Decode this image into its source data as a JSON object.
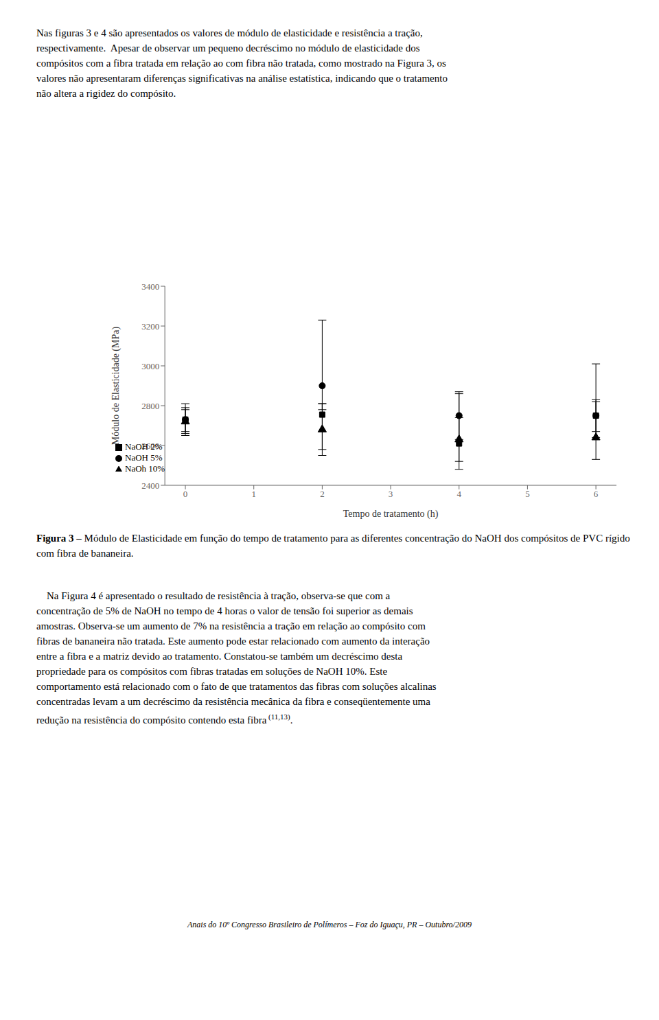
{
  "chart_data": {
    "type": "scatter",
    "title": "Figura 3 –",
    "subtitle": "Módulo de Elasticidade em função do tempo de tratamento para as diferentes concentração do NaOH dos compósitos de PVC rígido com fibra de bananeira.",
    "x_label": "Tempo de tratamento (h)",
    "y_label": "Módulo de Elasticidade (MPa)",
    "xlim": [
      -0.3,
      6.3
    ],
    "xticks": [
      0,
      1,
      2,
      3,
      4,
      5,
      6
    ],
    "ylim": [
      2400,
      3400
    ],
    "yticks": [
      2400,
      2600,
      2800,
      3000,
      3200,
      3400
    ],
    "grid": false,
    "legend": "lower left",
    "series": [
      {
        "name": "NaOH 2%",
        "color": "black",
        "marker": "square",
        "x": [
          0,
          2,
          4,
          6
        ],
        "values": [
          2730,
          2755,
          2610,
          2750
        ],
        "yerr_low": [
          80,
          175,
          130,
          80
        ],
        "yerr_high": [
          80,
          55,
          260,
          80
        ]
      },
      {
        "name": "NaOH 5%",
        "color": "black",
        "marker": "circle",
        "x": [
          0,
          2,
          4,
          6
        ],
        "values": [
          2730,
          2900,
          2750,
          2750
        ],
        "yerr_low": [
          60,
          120,
          120,
          110
        ],
        "yerr_high": [
          60,
          330,
          110,
          260
        ]
      },
      {
        "name": "NaOh 10%",
        "color": "black",
        "marker": "triangle",
        "x": [
          0,
          2,
          4,
          6
        ],
        "values": [
          2720,
          2680,
          2630,
          2640
        ],
        "yerr_low": [
          60,
          130,
          110,
          110
        ],
        "yerr_high": [
          60,
          130,
          110,
          180
        ]
      }
    ],
    "annotations": [
      "Nas figuras 3 e 4 são apresentados os valores de módulo de elasticidade e resistência a tração,",
      "respectivamente.  Apesar de observar um pequeno decréscimo no módulo de elasticidade dos",
      "compósitos com a fibra tratada em relação ao com fibra não tratada, como mostrado na Figura 3, os",
      "valores não apresentaram diferenças significativas na análise estatística, indicando que o tratamento",
      "não altera a rigidez do compósito.",
      "    Na Figura 4 é apresentado o resultado de resistência à tração, observa-se que com a",
      "concentração de 5% de NaOH no tempo de 4 horas o valor de tensão foi superior as demais",
      "amostras. Observa-se um aumento de 7% na resistência a tração em relação ao compósito com",
      "fibras de bananeira não tratada. Este aumento pode estar relacionado com aumento da interação",
      "entre a fibra e a matriz devido ao tratamento. Constatou-se também um decréscimo desta",
      "propriedade para os compósitos com fibras tratadas em soluções de NaOH 10%. Este",
      "comportamento está relacionado com o fato de que tratamentos das fibras com soluções alcalinas",
      "concentradas levam a um decréscimo da resistência mecânica da fibra e conseqüentemente uma",
      "redução na resistência do compósito contendo esta fibra",
      " (11,13)",
      ".",
      "Anais do 10º Congresso Brasileiro de Polímeros – Foz do Iguaçu, PR – Outubro/2009"
    ]
  }
}
